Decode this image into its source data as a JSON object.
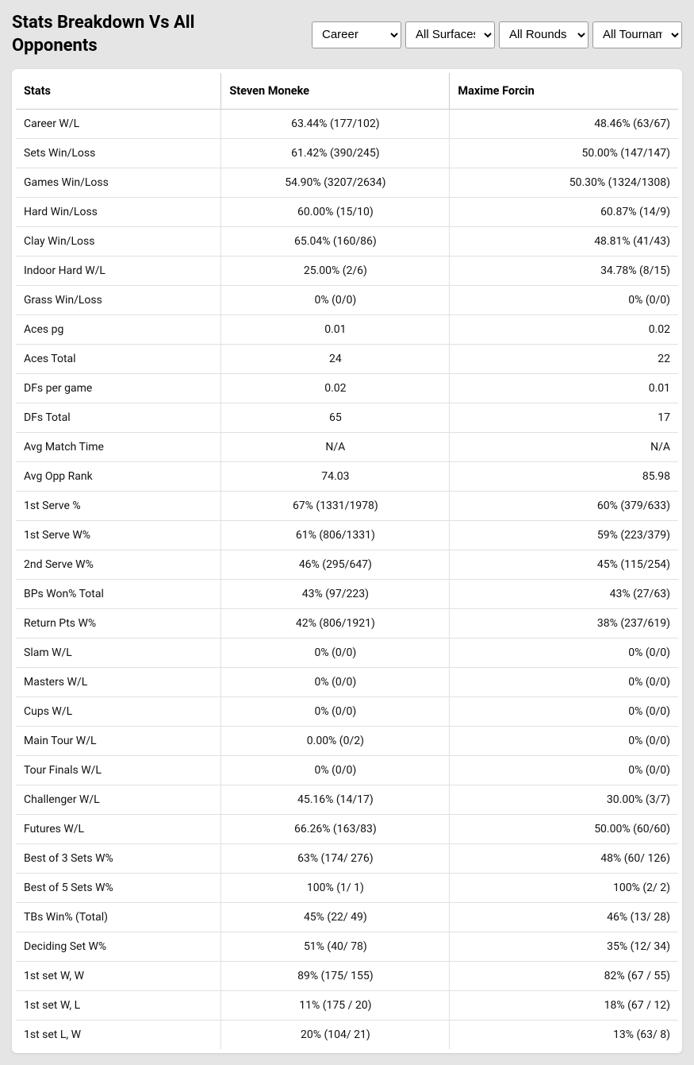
{
  "title": "Stats Breakdown Vs All Opponents",
  "filters": {
    "period": {
      "selected": "Career",
      "options": [
        "Career"
      ]
    },
    "surface": {
      "selected": "All Surfaces",
      "options": [
        "All Surfaces"
      ]
    },
    "round": {
      "selected": "All Rounds",
      "options": [
        "All Rounds"
      ]
    },
    "tournament": {
      "selected": "All Tournaments",
      "options": [
        "All Tournaments"
      ]
    }
  },
  "table": {
    "columns": [
      "Stats",
      "Steven Moneke",
      "Maxime Forcin"
    ],
    "col_widths_pct": [
      31,
      34.5,
      34.5
    ],
    "header_bg": "#ffffff",
    "border_color": "#e0e0e0",
    "header_border_color": "#cccccc",
    "font_size_header": 14.5,
    "font_size_body": 14,
    "rows": [
      [
        "Career W/L",
        "63.44% (177/102)",
        "48.46% (63/67)"
      ],
      [
        "Sets Win/Loss",
        "61.42% (390/245)",
        "50.00% (147/147)"
      ],
      [
        "Games Win/Loss",
        "54.90% (3207/2634)",
        "50.30% (1324/1308)"
      ],
      [
        "Hard Win/Loss",
        "60.00% (15/10)",
        "60.87% (14/9)"
      ],
      [
        "Clay Win/Loss",
        "65.04% (160/86)",
        "48.81% (41/43)"
      ],
      [
        "Indoor Hard W/L",
        "25.00% (2/6)",
        "34.78% (8/15)"
      ],
      [
        "Grass Win/Loss",
        "0% (0/0)",
        "0% (0/0)"
      ],
      [
        "Aces pg",
        "0.01",
        "0.02"
      ],
      [
        "Aces Total",
        "24",
        "22"
      ],
      [
        "DFs per game",
        "0.02",
        "0.01"
      ],
      [
        "DFs Total",
        "65",
        "17"
      ],
      [
        "Avg Match Time",
        "N/A",
        "N/A"
      ],
      [
        "Avg Opp Rank",
        "74.03",
        "85.98"
      ],
      [
        "1st Serve %",
        "67% (1331/1978)",
        "60% (379/633)"
      ],
      [
        "1st Serve W%",
        "61% (806/1331)",
        "59% (223/379)"
      ],
      [
        "2nd Serve W%",
        "46% (295/647)",
        "45% (115/254)"
      ],
      [
        "BPs Won% Total",
        "43% (97/223)",
        "43% (27/63)"
      ],
      [
        "Return Pts W%",
        "42% (806/1921)",
        "38% (237/619)"
      ],
      [
        "Slam W/L",
        "0% (0/0)",
        "0% (0/0)"
      ],
      [
        "Masters W/L",
        "0% (0/0)",
        "0% (0/0)"
      ],
      [
        "Cups W/L",
        "0% (0/0)",
        "0% (0/0)"
      ],
      [
        "Main Tour W/L",
        "0.00% (0/2)",
        "0% (0/0)"
      ],
      [
        "Tour Finals W/L",
        "0% (0/0)",
        "0% (0/0)"
      ],
      [
        "Challenger W/L",
        "45.16% (14/17)",
        "30.00% (3/7)"
      ],
      [
        "Futures W/L",
        "66.26% (163/83)",
        "50.00% (60/60)"
      ],
      [
        "Best of 3 Sets W%",
        "63% (174/ 276)",
        "48% (60/ 126)"
      ],
      [
        "Best of 5 Sets W%",
        "100% (1/ 1)",
        "100% (2/ 2)"
      ],
      [
        "TBs Win% (Total)",
        "45% (22/ 49)",
        "46% (13/ 28)"
      ],
      [
        "Deciding Set W%",
        "51% (40/ 78)",
        "35% (12/ 34)"
      ],
      [
        "1st set W, W",
        "89% (175/ 155)",
        "82% (67 / 55)"
      ],
      [
        "1st set W, L",
        "11% (175 / 20)",
        "18% (67 / 12)"
      ],
      [
        "1st set L, W",
        "20% (104/ 21)",
        "13% (63/ 8)"
      ]
    ]
  },
  "colors": {
    "page_bg": "#e5e5e5",
    "card_bg": "#ffffff",
    "text": "#111111"
  }
}
